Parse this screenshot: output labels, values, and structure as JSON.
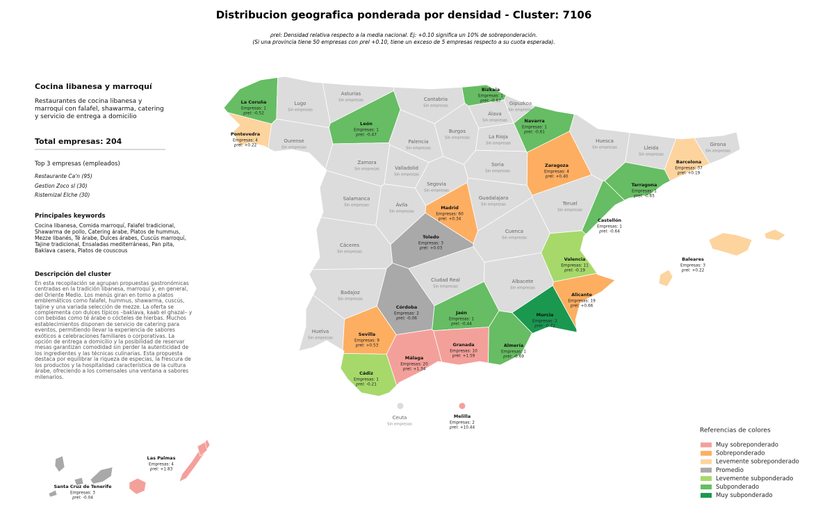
{
  "title": "Distribucion geografica ponderada por densidad - Cluster: 7106",
  "subtitle": [
    "ρrel: Densidad relativa respecto a la media nacional. Ej: +0.10 significa un 10% de sobreponderación.",
    "(Si una provincia tiene 50 empresas con ρrel +0.10, tiene un exceso de 5 empresas respecto a su cuota esperada)."
  ],
  "sidebar": {
    "heading": "Cocina libanesa y marroquí",
    "summary": "Restaurantes de cocina libanesa y marroquí con falafel, shawarma, catering y servicio de entrega a domicilio",
    "total": "Total empresas: 204",
    "top_heading": "Top 3 empresas (empleados)",
    "top": [
      "Restaurante Ca'n (95)",
      "Gestion Zoco sl (30)",
      "Ristemizal Elche (30)"
    ],
    "keywords_heading": "Principales keywords",
    "keywords": "Cocina libanesa, Comida marroquí, Falafel tradicional, Shawarma de pollo, Catering árabe, Platos de hummus, Mezze libanés, Té árabe, Dulces árabes, Cuscús marroquí, Tajine tradicional, Ensaladas mediterráneas, Pan pita, Baklava casera, Platos de couscous",
    "description_heading": "Descripción del cluster",
    "description": "En esta recopilación se agrupan propuestas gastronómicas centradas en la tradición libanesa, marroquí y, en general, del Oriente Medio. Los menús giran en torno a platos emblemáticos como falafel, hummus, shawarma, cuscús, tajine y una variada selección de mezze. La oferta se complementa con dulces típicos –baklava, kaab el ghazal– y con bebidas como té árabe o cócteles de hierbas. Muchos establecimientos disponen de servicio de catering para eventos, permitiendo llevar la experiencia de sabores exóticos a celebraciones familiares o corporativas. La opción de entrega a domicilio y la posibilidad de reservar mesas garantizan comodidad sin perder la autenticidad de los ingredientes y las técnicas culinarias. Esta propuesta destaca por equilibrar la riqueza de especias, la frescura de los productos y la hospitalidad característica de la cultura árabe, ofreciendo a los comensales una ventana a sabores milenarios."
  },
  "provinces": [
    {
      "name": "La Coruña",
      "lines": [
        "Empresas: 1",
        "ρrel: -0.52"
      ],
      "color": "#66bd63"
    },
    {
      "name": "Lugo",
      "lines": [
        "Sin empresas"
      ],
      "color": "#dcdcdc"
    },
    {
      "name": "Asturias",
      "lines": [
        "Sin empresas"
      ],
      "color": "#dcdcdc"
    },
    {
      "name": "Cantabria",
      "lines": [
        "Sin empresas"
      ],
      "color": "#dcdcdc"
    },
    {
      "name": "Bizkaia",
      "lines": [
        "Empresas: 1",
        "ρrel: -0.67"
      ],
      "color": "#66bd63"
    },
    {
      "name": "Gipuzkoa",
      "lines": [
        "Sin empresas"
      ],
      "color": "#dcdcdc"
    },
    {
      "name": "Álava",
      "lines": [
        "Sin empresas"
      ],
      "color": "#dcdcdc"
    },
    {
      "name": "Navarra",
      "lines": [
        "Empresas: 1",
        "ρrel: -0.61"
      ],
      "color": "#66bd63"
    },
    {
      "name": "Pontevedra",
      "lines": [
        "Empresas: 4",
        "ρrel: +0.22"
      ],
      "color": "#fdd49e"
    },
    {
      "name": "Ourense",
      "lines": [
        "Sin empresas"
      ],
      "color": "#dcdcdc"
    },
    {
      "name": "León",
      "lines": [
        "Empresas: 1",
        "ρrel: -0.47"
      ],
      "color": "#66bd63"
    },
    {
      "name": "Palencia",
      "lines": [
        "Sin empresas"
      ],
      "color": "#dcdcdc"
    },
    {
      "name": "Burgos",
      "lines": [
        "Sin empresas"
      ],
      "color": "#dcdcdc"
    },
    {
      "name": "La Rioja",
      "lines": [
        "Sin empresas"
      ],
      "color": "#dcdcdc"
    },
    {
      "name": "Huesca",
      "lines": [
        "Sin empresas"
      ],
      "color": "#dcdcdc"
    },
    {
      "name": "Lleida",
      "lines": [
        "Sin empresas"
      ],
      "color": "#dcdcdc"
    },
    {
      "name": "Girona",
      "lines": [
        "Sin empresas"
      ],
      "color": "#dcdcdc"
    },
    {
      "name": "Barcelona",
      "lines": [
        "Empresas: 37",
        "ρrel: +0.19"
      ],
      "color": "#fdd49e"
    },
    {
      "name": "Zaragoza",
      "lines": [
        "Empresas: 4",
        "ρrel: +0.40"
      ],
      "color": "#fdae61"
    },
    {
      "name": "Zamora",
      "lines": [
        "Sin empresas"
      ],
      "color": "#dcdcdc"
    },
    {
      "name": "Valladolid",
      "lines": [
        "Sin empresas"
      ],
      "color": "#dcdcdc"
    },
    {
      "name": "Soria",
      "lines": [
        "Sin empresas"
      ],
      "color": "#dcdcdc"
    },
    {
      "name": "Segovia",
      "lines": [
        "Sin empresas"
      ],
      "color": "#dcdcdc"
    },
    {
      "name": "Tarragona",
      "lines": [
        "Empresas: 1",
        "ρrel: -0.65"
      ],
      "color": "#66bd63"
    },
    {
      "name": "Salamanca",
      "lines": [
        "Sin empresas"
      ],
      "color": "#dcdcdc"
    },
    {
      "name": "Ávila",
      "lines": [
        "Sin empresas"
      ],
      "color": "#dcdcdc"
    },
    {
      "name": "Guadalajara",
      "lines": [
        "Sin empresas"
      ],
      "color": "#dcdcdc"
    },
    {
      "name": "Teruel",
      "lines": [
        "Sin empresas"
      ],
      "color": "#dcdcdc"
    },
    {
      "name": "Madrid",
      "lines": [
        "Empresas: 60",
        "ρrel: +0.34"
      ],
      "color": "#fdae61"
    },
    {
      "name": "Toledo",
      "lines": [
        "Empresas: 3",
        "ρrel: +0.03"
      ],
      "color": "#a9a9a9"
    },
    {
      "name": "Cuenca",
      "lines": [
        "Sin empresas"
      ],
      "color": "#dcdcdc"
    },
    {
      "name": "Castellón",
      "lines": [
        "Empresas: 1",
        "ρrel: -0.64"
      ],
      "color": "#66bd63"
    },
    {
      "name": "Cáceres",
      "lines": [
        "Sin empresas"
      ],
      "color": "#dcdcdc"
    },
    {
      "name": "Valencia",
      "lines": [
        "Empresas: 11",
        "ρrel: -0.19"
      ],
      "color": "#a6d96a"
    },
    {
      "name": "Ciudad Real",
      "lines": [
        "Sin empresas"
      ],
      "color": "#dcdcdc"
    },
    {
      "name": "Albacete",
      "lines": [
        "Sin empresas"
      ],
      "color": "#dcdcdc"
    },
    {
      "name": "Badajoz",
      "lines": [
        "Sin empresas"
      ],
      "color": "#dcdcdc"
    },
    {
      "name": "Alicante",
      "lines": [
        "Empresas: 19",
        "ρrel: +0.66"
      ],
      "color": "#fdae61"
    },
    {
      "name": "Córdoba",
      "lines": [
        "Empresas: 2",
        "ρrel: -0.06"
      ],
      "color": "#a9a9a9"
    },
    {
      "name": "Jaén",
      "lines": [
        "Empresas: 1",
        "ρrel: -0.44"
      ],
      "color": "#66bd63"
    },
    {
      "name": "Murcia",
      "lines": [
        "Empresas: 2",
        "ρrel: -0.72"
      ],
      "color": "#1a9850"
    },
    {
      "name": "Huelva",
      "lines": [
        "Sin empresas"
      ],
      "color": "#dcdcdc"
    },
    {
      "name": "Sevilla",
      "lines": [
        "Empresas: 9",
        "ρrel: +0.53"
      ],
      "color": "#fdae61"
    },
    {
      "name": "Granada",
      "lines": [
        "Empresas: 10",
        "ρrel: +1.59"
      ],
      "color": "#f4a09a"
    },
    {
      "name": "Almería",
      "lines": [
        "Empresas: 1",
        "ρrel: -0.69"
      ],
      "color": "#66bd63"
    },
    {
      "name": "Málaga",
      "lines": [
        "Empresas: 20",
        "ρrel: +1.34"
      ],
      "color": "#f4a09a"
    },
    {
      "name": "Cádiz",
      "lines": [
        "Empresas: 1",
        "ρrel: -0.21"
      ],
      "color": "#a6d96a"
    },
    {
      "name": "Baleares",
      "lines": [
        "Empresas: 3",
        "ρrel: +0.22"
      ],
      "color": "#fdd49e"
    },
    {
      "name": "Ceuta",
      "lines": [
        "Sin empresas"
      ],
      "color": "#dcdcdc"
    },
    {
      "name": "Melilla",
      "lines": [
        "Empresas: 2",
        "ρrel: +10.44"
      ],
      "color": "#f4a09a"
    },
    {
      "name": "Las Palmas",
      "lines": [
        "Empresas: 4",
        "ρrel: +1.83"
      ],
      "color": "#f4a09a"
    },
    {
      "name": "Santa Cruz de Tenerife",
      "lines": [
        "Empresas: 3",
        "ρrel: -0.04"
      ],
      "color": "#a9a9a9"
    }
  ],
  "legend": {
    "title": "Referencias de colores",
    "items": [
      {
        "label": "Muy sobreponderado",
        "color": "#f4a09a"
      },
      {
        "label": "Sobreponderado",
        "color": "#fdae61"
      },
      {
        "label": "Levemente sobreponderado",
        "color": "#fdd49e"
      },
      {
        "label": "Promedio",
        "color": "#a9a9a9"
      },
      {
        "label": "Levemente subponderado",
        "color": "#a6d96a"
      },
      {
        "label": "Subponderado",
        "color": "#66bd63"
      },
      {
        "label": "Muy subponderado",
        "color": "#1a9850"
      }
    ]
  }
}
